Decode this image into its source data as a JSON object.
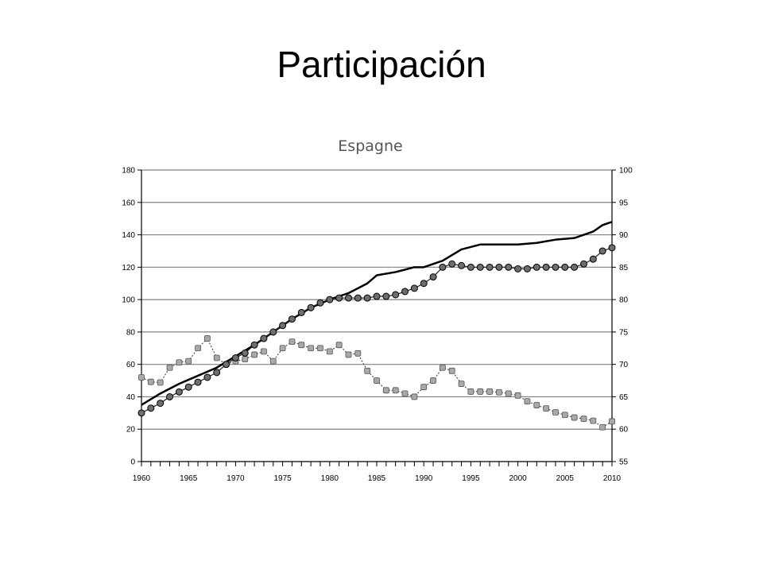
{
  "slide": {
    "title": "Participación"
  },
  "chart_data": {
    "type": "line",
    "title": "Espagne",
    "xlabel": "",
    "ylabel": "",
    "xlim": [
      1960,
      2010
    ],
    "ylim_left": [
      0,
      180
    ],
    "ylim_right": [
      55,
      100
    ],
    "x_ticks": [
      "1960",
      "1965",
      "1970",
      "1975",
      "1980",
      "1985",
      "1990",
      "1995",
      "2000",
      "2005",
      "2010"
    ],
    "y_ticks_left": [
      "0",
      "20",
      "40",
      "60",
      "80",
      "100",
      "120",
      "140",
      "160",
      "180"
    ],
    "y_ticks_right": [
      "55",
      "60",
      "65",
      "70",
      "75",
      "80",
      "85",
      "90",
      "95",
      "100"
    ],
    "grid": "horizontal",
    "series": [
      {
        "axis": "left",
        "style": "solid line",
        "x": [
          1960,
          1962,
          1964,
          1966,
          1968,
          1970,
          1972,
          1974,
          1976,
          1978,
          1980,
          1982,
          1984,
          1985,
          1987,
          1989,
          1990,
          1992,
          1994,
          1996,
          1998,
          2000,
          2002,
          2004,
          2006,
          2008,
          2009,
          2010
        ],
        "values": [
          35,
          42,
          48,
          53,
          58,
          65,
          72,
          80,
          88,
          95,
          100,
          104,
          110,
          115,
          117,
          120,
          120,
          124,
          131,
          134,
          134,
          134,
          135,
          137,
          138,
          142,
          146,
          148
        ]
      },
      {
        "axis": "left",
        "style": "dark circle markers",
        "x": [
          1960,
          1961,
          1962,
          1963,
          1964,
          1965,
          1966,
          1967,
          1968,
          1969,
          1970,
          1971,
          1972,
          1973,
          1974,
          1975,
          1976,
          1977,
          1978,
          1979,
          1980,
          1981,
          1982,
          1983,
          1984,
          1985,
          1986,
          1987,
          1988,
          1989,
          1990,
          1991,
          1992,
          1993,
          1994,
          1995,
          1996,
          1997,
          1998,
          1999,
          2000,
          2001,
          2002,
          2003,
          2004,
          2005,
          2006,
          2007,
          2008,
          2009,
          2010
        ],
        "values": [
          30,
          33,
          36,
          40,
          43,
          46,
          49,
          52,
          55,
          60,
          64,
          67,
          72,
          76,
          80,
          84,
          88,
          92,
          95,
          98,
          100,
          101,
          101,
          101,
          101,
          102,
          102,
          103,
          105,
          107,
          110,
          114,
          120,
          122,
          121,
          120,
          120,
          120,
          120,
          120,
          119,
          119,
          120,
          120,
          120,
          120,
          120,
          122,
          125,
          130,
          132
        ]
      },
      {
        "axis": "right",
        "style": "light square markers, dashed",
        "x": [
          1960,
          1961,
          1962,
          1963,
          1964,
          1965,
          1966,
          1967,
          1968,
          1969,
          1970,
          1971,
          1972,
          1973,
          1974,
          1975,
          1976,
          1977,
          1978,
          1979,
          1980,
          1981,
          1982,
          1983,
          1984,
          1985,
          1986,
          1987,
          1988,
          1989,
          1990,
          1991,
          1992,
          1993,
          1994,
          1995,
          1996,
          1997,
          1998,
          1999,
          2000,
          2001,
          2002,
          2003,
          2004,
          2005,
          2006,
          2007,
          2008,
          2009,
          2010
        ],
        "values": [
          68,
          67.3,
          67.2,
          69.5,
          70.3,
          70.5,
          72.5,
          74,
          71,
          70,
          70.5,
          70.8,
          71.5,
          72,
          70.5,
          72.5,
          73.5,
          73,
          72.5,
          72.5,
          72,
          73,
          71.5,
          71.7,
          69,
          67.5,
          66,
          66,
          65.5,
          65,
          66.5,
          67.5,
          69.5,
          69,
          67,
          65.8,
          65.8,
          65.8,
          65.7,
          65.5,
          65.2,
          64.3,
          63.7,
          63.2,
          62.6,
          62.2,
          61.8,
          61.6,
          61.3,
          60.3,
          61.2
        ]
      }
    ],
    "colors": {
      "axes": "#000000",
      "grid": "#808080",
      "solid_line": "#000000",
      "circle_fill": "#6e6e6e",
      "square_fill": "#a9a9a9",
      "marker_edge": "#000000"
    }
  }
}
